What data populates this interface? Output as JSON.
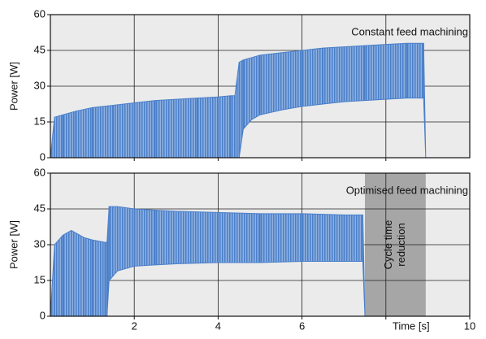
{
  "chart_data": [
    {
      "type": "band",
      "annotation": "Constant feed machining",
      "ylabel": "Power [W]",
      "x": [
        0,
        0.1,
        0.3,
        0.6,
        1,
        1.5,
        2,
        2.5,
        3,
        3.5,
        4,
        4.3,
        4.4,
        4.5,
        4.6,
        4.8,
        5,
        5.5,
        6,
        6.5,
        7,
        7.5,
        8,
        8.5,
        8.9,
        8.95
      ],
      "series": [
        {
          "color": "#4a7fc9",
          "values": [
            0,
            17,
            18,
            19.5,
            21,
            22,
            23,
            24,
            24.5,
            25,
            25.5,
            26,
            26,
            40,
            41,
            42,
            43,
            44,
            45,
            46,
            46.5,
            47,
            47.5,
            48,
            48,
            0
          ]
        },
        {
          "color": "#4a7fc9",
          "values": [
            0,
            0,
            0,
            0,
            0,
            0,
            0,
            0,
            0,
            0,
            0,
            0,
            0,
            0,
            12,
            16,
            18,
            20,
            21.5,
            22.5,
            23.5,
            24,
            24.5,
            25,
            25,
            0
          ]
        }
      ],
      "xlim": [
        0,
        10
      ],
      "xticks": [
        2,
        4,
        6,
        8
      ],
      "show_xtick_labels": false,
      "ylim": [
        0,
        60
      ],
      "yticks": [
        0,
        15,
        30,
        45,
        60
      ],
      "grid": true
    },
    {
      "type": "band",
      "annotation": "Optimised feed machining",
      "ylabel": "Power [W]",
      "xlabel": "Time [s]",
      "x": [
        0,
        0.1,
        0.3,
        0.5,
        0.8,
        1,
        1.3,
        1.35,
        1.4,
        1.6,
        2,
        2.5,
        3,
        4,
        5,
        6,
        7,
        7.45,
        7.5
      ],
      "series": [
        {
          "color": "#4a7fc9",
          "values": [
            0,
            30,
            34,
            36,
            33,
            32,
            31,
            31,
            46,
            46,
            45,
            44.5,
            44,
            43.5,
            43,
            43,
            42.5,
            42.5,
            0
          ]
        },
        {
          "color": "#4a7fc9",
          "values": [
            0,
            0,
            0,
            0,
            0,
            0,
            0,
            0,
            15,
            19,
            21,
            21.5,
            22,
            22.5,
            22.5,
            23,
            23,
            23,
            0
          ]
        }
      ],
      "shade": [
        7.5,
        8.95
      ],
      "shade_color": "#a6a6a6",
      "shade_text": [
        "Cycle time",
        "reduction"
      ],
      "xlim": [
        0,
        10
      ],
      "xticks": [
        2,
        4,
        6,
        {
          "value": 8,
          "label": null
        },
        10
      ],
      "show_xtick_labels": true,
      "ylim": [
        0,
        60
      ],
      "yticks": [
        0,
        15,
        30,
        45,
        60
      ],
      "grid": true
    }
  ]
}
